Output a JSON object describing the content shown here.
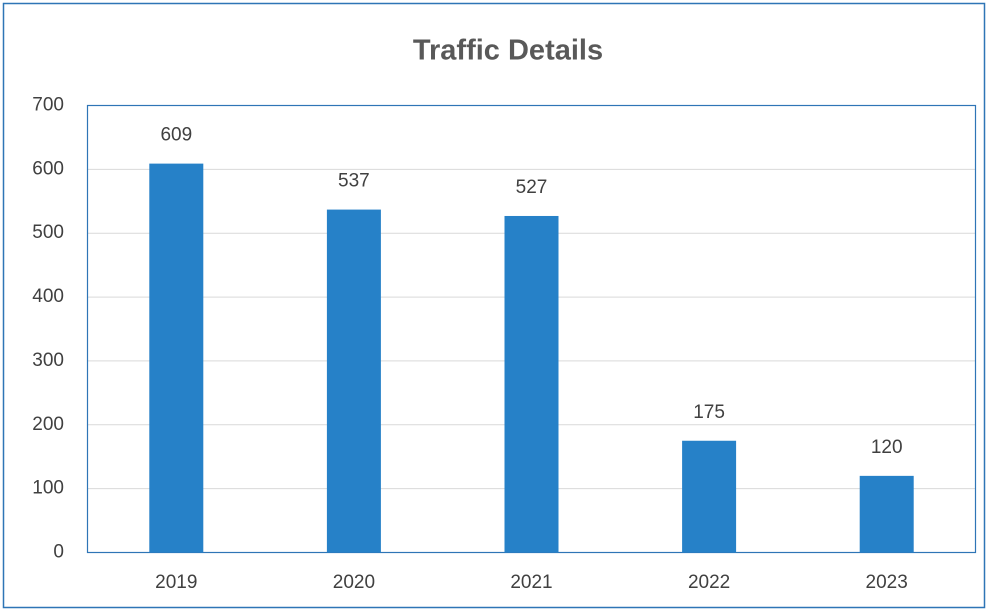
{
  "chart_data": {
    "type": "bar",
    "title": "Traffic Details",
    "categories": [
      "2019",
      "2020",
      "2021",
      "2022",
      "2023"
    ],
    "values": [
      609,
      537,
      527,
      175,
      120
    ],
    "color": "#2681c8",
    "ylim": [
      0,
      700
    ],
    "yticks": [
      0,
      100,
      200,
      300,
      400,
      500,
      600,
      700
    ],
    "grid": true
  }
}
